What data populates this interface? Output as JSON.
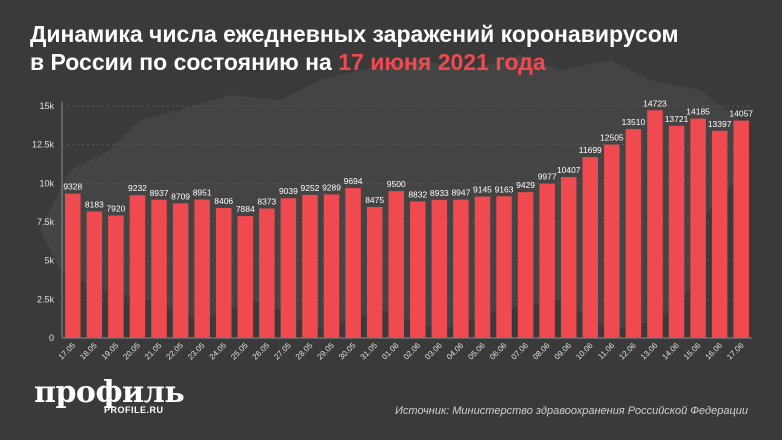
{
  "header": {
    "title_part1": "Динамика числа ежедневных заражений коронавирусом",
    "title_part2": "в России по состоянию на ",
    "title_accent": "17 июня 2021 года"
  },
  "footer": {
    "logo_text": "профиль",
    "logo_url_text": "PROFILE.RU",
    "source": "Источник: Министерство здравоохранения Российской Федерации"
  },
  "colors": {
    "background": "#3a3a3a",
    "bar": "#ef4a50",
    "accent": "#ef4a50",
    "text": "#ffffff",
    "grid": "#5a5a5a"
  },
  "chart_data": {
    "type": "bar",
    "title": "Динамика числа ежедневных заражений коронавирусом в России по состоянию на 17 июня 2021 года",
    "xlabel": "",
    "ylabel": "",
    "ylim": [
      0,
      15000
    ],
    "yticks": [
      0,
      2500,
      5000,
      7500,
      10000,
      12500,
      15000
    ],
    "ytick_labels": [
      "0",
      "2.5k",
      "5k",
      "7.5k",
      "10k",
      "12.5k",
      "15k"
    ],
    "grid": true,
    "categories": [
      "17.05",
      "18.05",
      "19.05",
      "20.05",
      "21.05",
      "22.05",
      "23.05",
      "24.05",
      "25.05",
      "26.05",
      "27.05",
      "28.05",
      "29.05",
      "30.05",
      "31.05",
      "01.06",
      "02.06",
      "03.06",
      "04.06",
      "05.06",
      "06.06",
      "07.06",
      "08.06",
      "09.06",
      "10.06",
      "11.06",
      "12.06",
      "13.06",
      "14.06",
      "15.06",
      "16.06",
      "17.06"
    ],
    "values": [
      9328,
      8183,
      7920,
      9232,
      8937,
      8709,
      8951,
      8406,
      7884,
      8373,
      9039,
      9252,
      9289,
      9694,
      8475,
      9500,
      8832,
      8933,
      8947,
      9145,
      9163,
      9429,
      9977,
      10407,
      11699,
      12505,
      13510,
      14723,
      13721,
      14185,
      13397,
      14057
    ]
  }
}
